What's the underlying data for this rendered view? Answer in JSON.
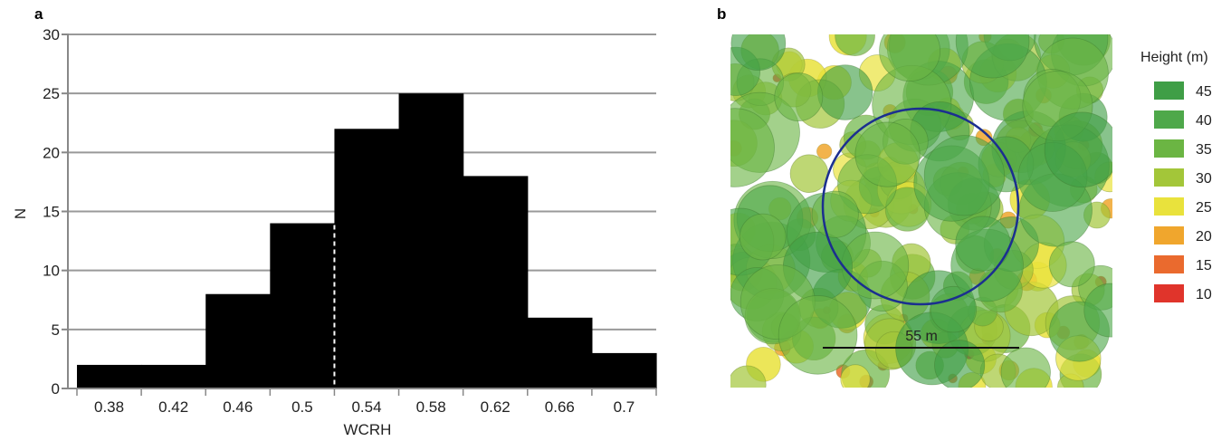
{
  "panels": {
    "a": {
      "label": "a"
    },
    "b": {
      "label": "b"
    }
  },
  "chart_data": [
    {
      "type": "bar",
      "title": "",
      "xlabel": "WCRH",
      "ylabel": "N",
      "bin_edges": [
        0.36,
        0.4,
        0.44,
        0.48,
        0.52,
        0.56,
        0.6,
        0.64,
        0.68,
        0.72
      ],
      "values": [
        2,
        2,
        8,
        14,
        22,
        25,
        18,
        6,
        3
      ],
      "xticks": [
        0.38,
        0.42,
        0.46,
        0.5,
        0.54,
        0.58,
        0.62,
        0.66,
        0.7
      ],
      "xtick_labels": [
        "0.38",
        "0.42",
        "0.46",
        "0.5",
        "0.54",
        "0.58",
        "0.62",
        "0.66",
        "0.7"
      ],
      "yticks": [
        0,
        5,
        10,
        15,
        20,
        25,
        30
      ],
      "ylim": [
        0,
        30
      ],
      "xlim": [
        0.36,
        0.72
      ],
      "grid": "horizontal",
      "bar_color": "#000000",
      "marker_line": {
        "x": 0.52,
        "style": "dashed",
        "color": "#ffffff"
      }
    },
    {
      "type": "map",
      "legend_title": "Height (m)",
      "legend": [
        {
          "label": "45",
          "value": 45,
          "color": "#3f9e46"
        },
        {
          "label": "40",
          "value": 40,
          "color": "#4ea84a"
        },
        {
          "label": "35",
          "value": 35,
          "color": "#6bb543"
        },
        {
          "label": "30",
          "value": 30,
          "color": "#a3c639"
        },
        {
          "label": "25",
          "value": 25,
          "color": "#e9e23c"
        },
        {
          "label": "20",
          "value": 20,
          "color": "#f0a62d"
        },
        {
          "label": "15",
          "value": 15,
          "color": "#ea6a2e"
        },
        {
          "label": "10",
          "value": 10,
          "color": "#e0342b"
        }
      ],
      "legend_placement": "right",
      "scale_bar_label": "55 m",
      "circle_color": "#1b2f8f"
    }
  ]
}
